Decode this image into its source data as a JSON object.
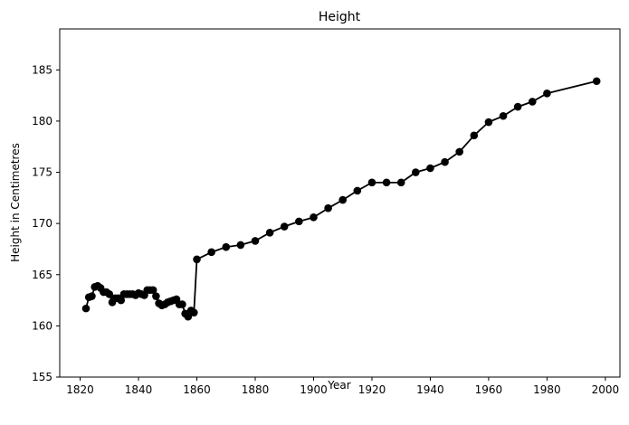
{
  "chart_data": {
    "type": "line",
    "title": "Height",
    "xlabel": "Year",
    "ylabel": "Height in Centimetres",
    "xlim": [
      1813,
      2005
    ],
    "ylim": [
      155,
      189
    ],
    "xticks": [
      1820,
      1840,
      1860,
      1880,
      1900,
      1920,
      1940,
      1960,
      1980,
      2000
    ],
    "yticks": [
      155,
      160,
      165,
      170,
      175,
      180,
      185
    ],
    "grid": false,
    "line_color": "#000000",
    "marker": "circle",
    "series": [
      {
        "x": [
          1822,
          1823,
          1824,
          1825,
          1826,
          1827,
          1828,
          1829,
          1830,
          1831,
          1832,
          1833,
          1834,
          1835,
          1836,
          1837,
          1838,
          1839,
          1840,
          1841,
          1842,
          1843,
          1844,
          1845,
          1846,
          1847,
          1848,
          1849,
          1850,
          1851,
          1852,
          1853,
          1854,
          1855,
          1856,
          1857,
          1858,
          1859,
          1860,
          1865,
          1870,
          1875,
          1880,
          1885,
          1890,
          1895,
          1900,
          1905,
          1910,
          1915,
          1920,
          1925,
          1930,
          1935,
          1940,
          1945,
          1950,
          1955,
          1960,
          1965,
          1970,
          1975,
          1980,
          1997
        ],
        "y": [
          161.7,
          162.8,
          162.9,
          163.8,
          163.9,
          163.7,
          163.3,
          163.3,
          163.1,
          162.3,
          162.7,
          162.7,
          162.5,
          163.1,
          163.1,
          163.1,
          163.1,
          163.0,
          163.2,
          163.1,
          163.0,
          163.5,
          163.5,
          163.5,
          162.9,
          162.2,
          162.0,
          162.1,
          162.3,
          162.4,
          162.5,
          162.6,
          162.1,
          162.1,
          161.2,
          160.9,
          161.5,
          161.3,
          166.5,
          167.2,
          167.7,
          167.9,
          168.3,
          169.1,
          169.7,
          170.2,
          170.6,
          171.5,
          172.3,
          173.2,
          174.0,
          174.0,
          174.0,
          175.0,
          175.4,
          176.0,
          177.0,
          178.6,
          179.9,
          180.5,
          181.4,
          181.9,
          182.7,
          183.9
        ]
      }
    ]
  }
}
